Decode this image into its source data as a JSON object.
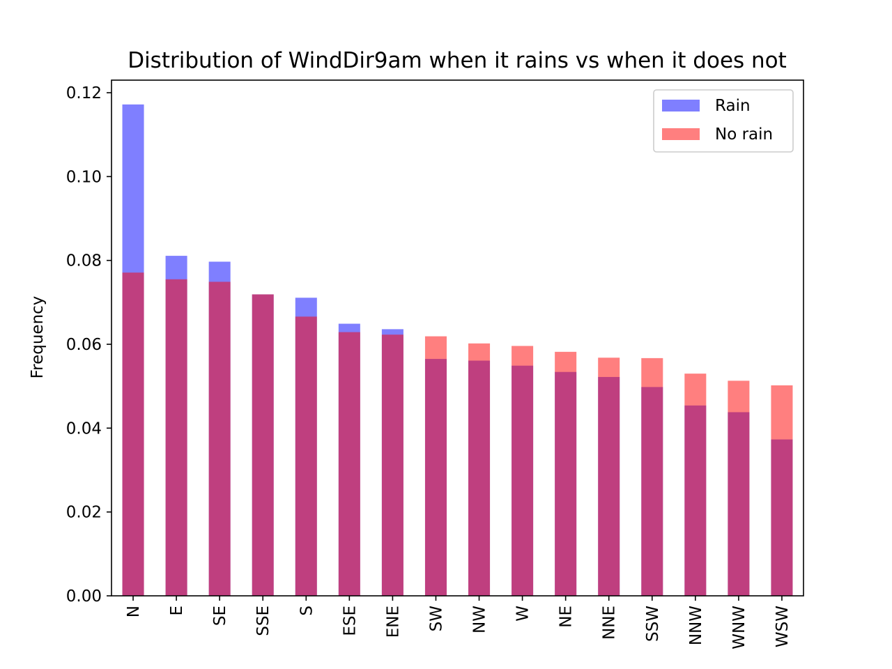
{
  "chart_data": {
    "type": "bar",
    "title": "Distribution of WindDir9am when it rains vs when it does not",
    "xlabel": "",
    "ylabel": "Frequency",
    "ylim": [
      0,
      0.123
    ],
    "yticks": [
      "0.00",
      "0.02",
      "0.04",
      "0.06",
      "0.08",
      "0.10",
      "0.12"
    ],
    "categories": [
      "N",
      "E",
      "SE",
      "SSE",
      "S",
      "ESE",
      "ENE",
      "SW",
      "NW",
      "W",
      "NE",
      "NNE",
      "SSW",
      "NNW",
      "WNW",
      "WSW"
    ],
    "series": [
      {
        "name": "Rain",
        "color": "#0000ff",
        "opacity": 0.5,
        "values": [
          0.1172,
          0.0811,
          0.0797,
          0.0719,
          0.0711,
          0.0649,
          0.0636,
          0.0565,
          0.0561,
          0.0549,
          0.0534,
          0.0522,
          0.0498,
          0.0454,
          0.0438,
          0.0373
        ]
      },
      {
        "name": "No rain",
        "color": "#ff0000",
        "opacity": 0.5,
        "values": [
          0.0771,
          0.0755,
          0.0749,
          0.0719,
          0.0666,
          0.0629,
          0.0623,
          0.0619,
          0.0602,
          0.0596,
          0.0582,
          0.0568,
          0.0567,
          0.053,
          0.0513,
          0.0502
        ]
      }
    ],
    "legend": {
      "position": "top-right"
    },
    "grid": false
  }
}
